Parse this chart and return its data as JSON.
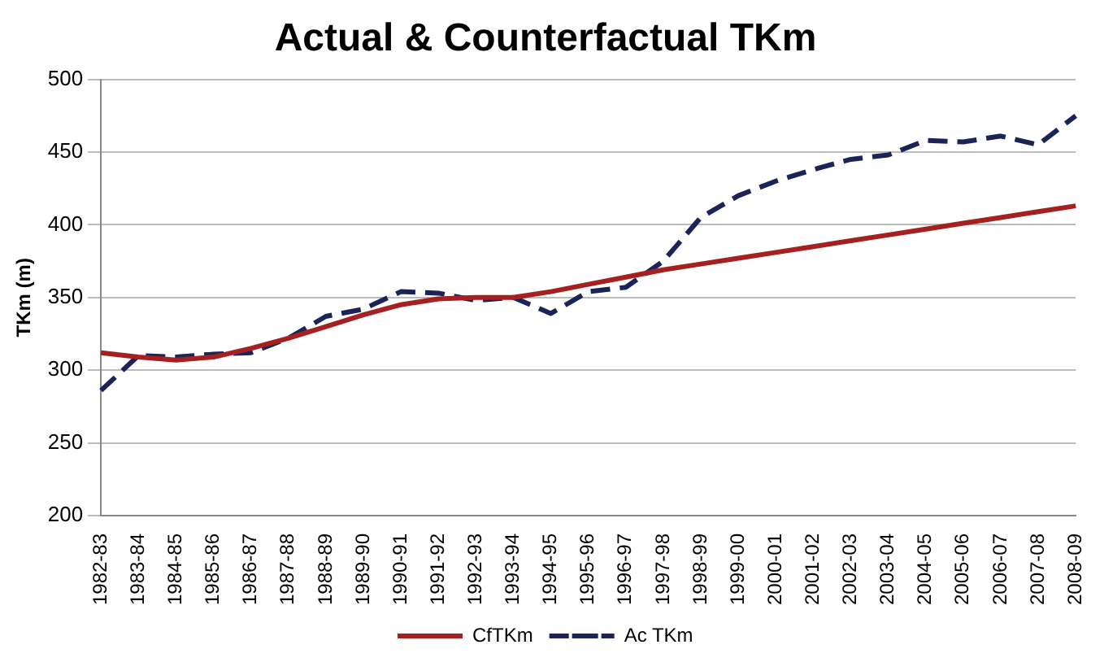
{
  "chart_data": {
    "type": "line",
    "title": "Actual & Counterfactual TKm",
    "ylabel": "TKm (m)",
    "categories": [
      "1982-83",
      "1983-84",
      "1984-85",
      "1985-86",
      "1986-87",
      "1987-88",
      "1988-89",
      "1989-90",
      "1990-91",
      "1991-92",
      "1992-93",
      "1993-94",
      "1994-95",
      "1995-96",
      "1996-97",
      "1997-98",
      "1998-99",
      "1999-00",
      "2000-01",
      "2001-02",
      "2002-03",
      "2003-04",
      "2004-05",
      "2005-06",
      "2006-07",
      "2007-08",
      "2008-09"
    ],
    "series": [
      {
        "name": "CfTKm",
        "color": "#a52020",
        "line_style": "solid",
        "values": [
          312,
          309,
          307,
          309,
          315,
          322,
          330,
          338,
          345,
          349,
          350,
          350,
          354,
          359,
          364,
          369,
          373,
          377,
          381,
          385,
          389,
          393,
          397,
          401,
          405,
          409,
          413
        ]
      },
      {
        "name": "Ac TKm",
        "color": "#1a2456",
        "line_style": "dashed",
        "values": [
          286,
          310,
          309,
          311,
          312,
          322,
          337,
          342,
          354,
          353,
          348,
          350,
          339,
          354,
          357,
          375,
          405,
          420,
          430,
          438,
          445,
          448,
          458,
          457,
          461,
          455,
          475
        ]
      }
    ],
    "ylim": [
      200,
      500
    ],
    "yticks": [
      200,
      250,
      300,
      350,
      400,
      450,
      500
    ],
    "grid": "y",
    "legend": "bottom",
    "marker": "none"
  }
}
